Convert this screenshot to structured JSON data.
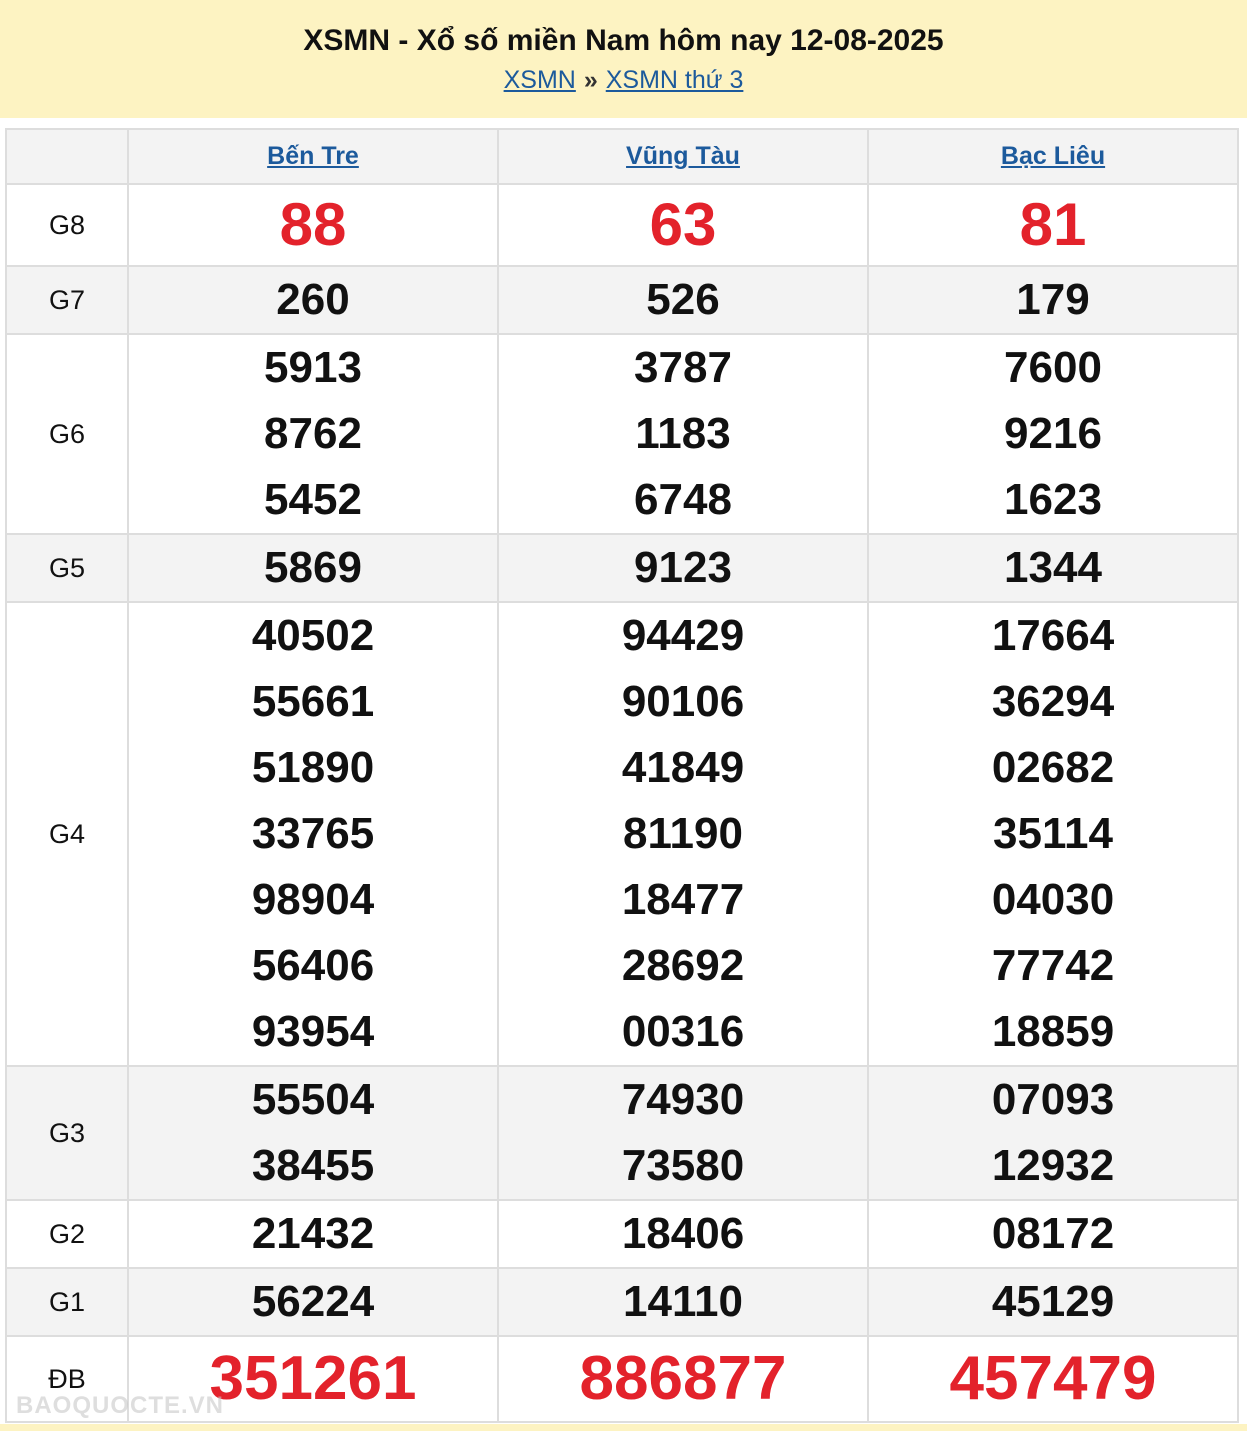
{
  "header": {
    "title": "XSMN - Xổ số miền Nam hôm nay 12-08-2025",
    "breadcrumb": [
      "XSMN",
      "XSMN thứ 3"
    ],
    "separator": "»"
  },
  "provinces": [
    "Bến Tre",
    "Vũng Tàu",
    "Bạc Liêu"
  ],
  "prizes": [
    {
      "label": "G8",
      "values": [
        [
          "88"
        ],
        [
          "63"
        ],
        [
          "81"
        ]
      ]
    },
    {
      "label": "G7",
      "values": [
        [
          "260"
        ],
        [
          "526"
        ],
        [
          "179"
        ]
      ]
    },
    {
      "label": "G6",
      "values": [
        [
          "5913",
          "8762",
          "5452"
        ],
        [
          "3787",
          "1183",
          "6748"
        ],
        [
          "7600",
          "9216",
          "1623"
        ]
      ]
    },
    {
      "label": "G5",
      "values": [
        [
          "5869"
        ],
        [
          "9123"
        ],
        [
          "1344"
        ]
      ]
    },
    {
      "label": "G4",
      "values": [
        [
          "40502",
          "55661",
          "51890",
          "33765",
          "98904",
          "56406",
          "93954"
        ],
        [
          "94429",
          "90106",
          "41849",
          "81190",
          "18477",
          "28692",
          "00316"
        ],
        [
          "17664",
          "36294",
          "02682",
          "35114",
          "04030",
          "77742",
          "18859"
        ]
      ]
    },
    {
      "label": "G3",
      "values": [
        [
          "55504",
          "38455"
        ],
        [
          "74930",
          "73580"
        ],
        [
          "07093",
          "12932"
        ]
      ]
    },
    {
      "label": "G2",
      "values": [
        [
          "21432"
        ],
        [
          "18406"
        ],
        [
          "08172"
        ]
      ]
    },
    {
      "label": "G1",
      "values": [
        [
          "56224"
        ],
        [
          "14110"
        ],
        [
          "45129"
        ]
      ]
    },
    {
      "label": "ĐB",
      "values": [
        [
          "351261"
        ],
        [
          "886877"
        ],
        [
          "457479"
        ]
      ]
    }
  ],
  "watermark": "BAOQUOCTE.VN",
  "colors": {
    "highlight": "#e3222b",
    "link": "#1c5a9c",
    "header_bg": "#fdf3c2"
  }
}
